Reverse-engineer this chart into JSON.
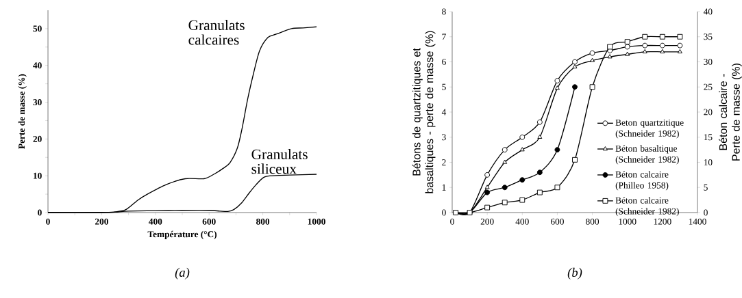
{
  "chart_data": [
    {
      "type": "line",
      "xlabel": "Température (°C)",
      "ylabel": "Perte de masse (%)",
      "xlim": [
        0,
        1000
      ],
      "ylim": [
        0,
        55
      ],
      "xticks": [
        0,
        {
          "value": 100,
          "label": null
        },
        200,
        {
          "value": 300,
          "label": null
        },
        400,
        {
          "value": 500,
          "label": null
        },
        600,
        {
          "value": 700,
          "label": null
        },
        800,
        {
          "value": 900,
          "label": null
        },
        1000
      ],
      "yticks": [
        0,
        {
          "value": 5,
          "label": null
        },
        10,
        {
          "value": 15,
          "label": null
        },
        20,
        {
          "value": 25,
          "label": null
        },
        30,
        {
          "value": 35,
          "label": null
        },
        40,
        {
          "value": 45,
          "label": null
        },
        50
      ],
      "series": [
        {
          "name": "Granulats calcaires",
          "color": "#000000",
          "x": [
            0,
            200,
            250,
            290,
            335,
            370,
            440,
            511,
            581,
            620,
            652,
            678,
            705,
            722,
            744,
            766,
            788,
            819,
            850,
            907,
            950,
            1000
          ],
          "values": [
            0,
            0,
            0.2,
            0.8,
            3.4,
            5,
            7.6,
            9.2,
            9.2,
            10.5,
            12,
            13.6,
            17.5,
            22.6,
            31,
            38,
            44,
            47.6,
            48.5,
            50,
            50.2,
            50.5
          ]
        },
        {
          "name": "Granulats siliceux",
          "color": "#000000",
          "x": [
            0,
            200,
            250,
            300,
            400,
            500,
            600,
            640,
            670,
            692,
            722,
            749,
            775,
            802,
            828,
            900,
            1000
          ],
          "values": [
            0,
            0,
            0.1,
            0.4,
            0.5,
            0.6,
            0.6,
            0.4,
            0.3,
            0.8,
            2.7,
            5.3,
            7.6,
            9.5,
            10,
            10.2,
            10.4
          ]
        }
      ],
      "annotations": [
        "(a)"
      ]
    },
    {
      "type": "line",
      "ylabel": "Bétons de quartzitiques et basaltiques - perte de masse (%)",
      "y2label": "Béton calcaire - Perte de masse (%)",
      "xlim": [
        0,
        1400
      ],
      "ylim": [
        0,
        8
      ],
      "y2lim": [
        0,
        40
      ],
      "xticks": [
        0,
        200,
        400,
        600,
        800,
        1000,
        1200,
        1400
      ],
      "yticks": [
        0,
        1,
        2,
        3,
        4,
        5,
        6,
        7,
        8
      ],
      "y2ticks": [
        0,
        5,
        10,
        15,
        20,
        25,
        30,
        35,
        40
      ],
      "legend": "bottom right",
      "series": [
        {
          "name": "Beton quartzitique (Schneider 1982)",
          "color": "#000000",
          "marker": "circle",
          "x": [
            20,
            100,
            200,
            300,
            400,
            500,
            600,
            700,
            800,
            900,
            1000,
            1100,
            1200,
            1300
          ],
          "values": [
            0,
            0,
            1.5,
            2.5,
            3.0,
            3.6,
            5.25,
            6.0,
            6.35,
            6.45,
            6.6,
            6.65,
            6.65,
            6.65
          ]
        },
        {
          "name": "Béton basaltique (Schneider 1982)",
          "color": "#000000",
          "marker": "triangle",
          "x": [
            20,
            100,
            200,
            300,
            400,
            500,
            600,
            700,
            800,
            900,
            1000,
            1100,
            1200,
            1300
          ],
          "values": [
            0,
            0,
            1.0,
            2.0,
            2.5,
            3.0,
            4.95,
            5.8,
            6.05,
            6.2,
            6.3,
            6.4,
            6.4,
            6.4
          ]
        },
        {
          "name": "Béton calcaire (Philleo 1958)",
          "color": "#000000",
          "marker": "circle",
          "axis": "y2",
          "x": [
            20,
            100,
            200,
            300,
            400,
            500,
            600,
            700
          ],
          "values": [
            0,
            0,
            4,
            5,
            6.5,
            8,
            12.5,
            25
          ]
        },
        {
          "name": "Béton calcaire (Schneider 1982)",
          "color": "#000000",
          "marker": "square",
          "axis": "y2",
          "x": [
            20,
            100,
            200,
            300,
            400,
            500,
            600,
            700,
            800,
            900,
            1000,
            1100,
            1200,
            1300
          ],
          "values": [
            0,
            0,
            1,
            2,
            2.5,
            4,
            5,
            10.5,
            25,
            33,
            34,
            35,
            35,
            35
          ]
        }
      ],
      "annotations": [
        "(b)"
      ]
    }
  ]
}
